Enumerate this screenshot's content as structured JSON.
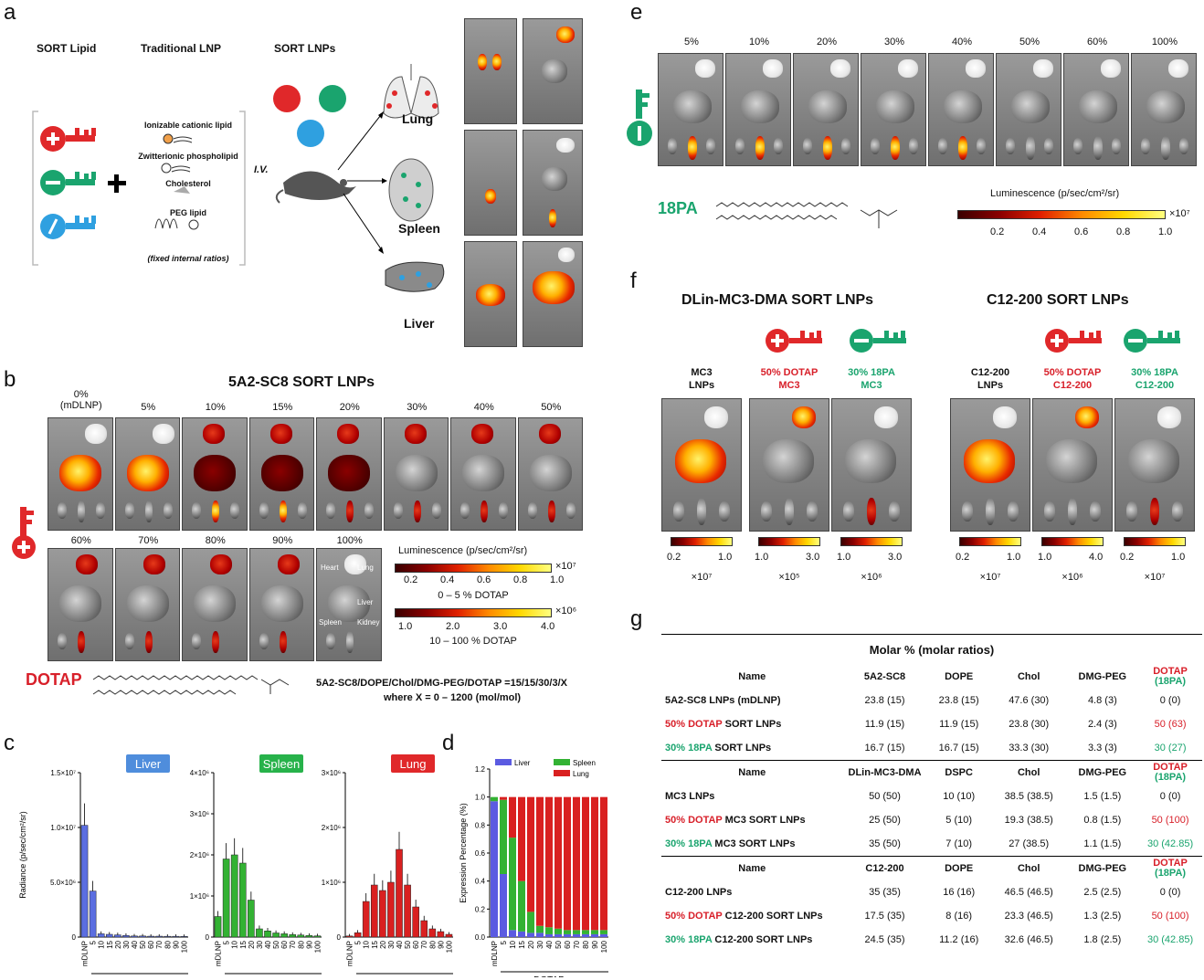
{
  "panels": {
    "a": "a",
    "b": "b",
    "c": "c",
    "d": "d",
    "e": "e",
    "f": "f",
    "g": "g"
  },
  "a": {
    "col_sort_lipid": "SORT Lipid",
    "col_traditional": "Traditional LNP",
    "col_sort_lnps": "SORT LNPs",
    "lnp_components": [
      "Ionizable cationic lipid",
      "Zwitterionic phospholipid",
      "Cholesterol",
      "PEG lipid"
    ],
    "fixed_ratios": "(fixed internal ratios)",
    "iv": "I.V.",
    "organs": [
      "Lung",
      "Spleen",
      "Liver"
    ],
    "plus": "+"
  },
  "b": {
    "title": "5A2-SC8 SORT LNPs",
    "row1": [
      "0%\n(mDLNP)",
      "5%",
      "10%",
      "15%",
      "20%",
      "30%",
      "40%",
      "50%"
    ],
    "row2": [
      "60%",
      "70%",
      "80%",
      "90%",
      "100%"
    ],
    "tile_labels": [
      "Heart",
      "Lung",
      "Liver",
      "Spleen",
      "Kidney"
    ],
    "lum_title": "Luminescence (p/sec/cm²/sr)",
    "scale1_ticks": [
      "0.2",
      "0.4",
      "0.6",
      "0.8",
      "1.0"
    ],
    "scale1_mult": "×10⁷",
    "scale1_caption": "0 – 5 % DOTAP",
    "scale2_ticks": [
      "1.0",
      "2.0",
      "3.0",
      "4.0"
    ],
    "scale2_mult": "×10⁶",
    "scale2_caption": "10 – 100 % DOTAP",
    "lipid_name": "DOTAP",
    "formula_line1": "5A2-SC8/DOPE/Chol/DMG-PEG/DOTAP =15/15/30/3/X",
    "formula_line2": "where X = 0 – 1200 (mol/mol)"
  },
  "c": {
    "ylabel": "Radiance (p/sec/cm²/sr)",
    "xlabel": "DOTAP",
    "charts": [
      {
        "name": "Liver",
        "color": "#5b6ee1",
        "badge": "#4f8ddc",
        "yticks": [
          "0",
          "5.0×10⁶",
          "1.0×10⁷",
          "1.5×10⁷"
        ],
        "ymax": 15000000
      },
      {
        "name": "Spleen",
        "color": "#33b233",
        "badge": "#27b24a",
        "yticks": [
          "0",
          "1×10⁶",
          "2×10⁶",
          "3×10⁶",
          "4×10⁶"
        ],
        "ymax": 4000000
      },
      {
        "name": "Lung",
        "color": "#d92020",
        "badge": "#e0282a",
        "yticks": [
          "0",
          "1×10⁶",
          "2×10⁶",
          "3×10⁶"
        ],
        "ymax": 3000000
      }
    ],
    "xticks": [
      "mDLNP",
      "5",
      "10",
      "15",
      "20",
      "30",
      "40",
      "50",
      "60",
      "70",
      "80",
      "90",
      "100"
    ]
  },
  "chart_data": [
    {
      "type": "bar",
      "title": "Liver",
      "xlabel": "DOTAP",
      "ylabel": "Radiance (p/sec/cm²/sr)",
      "categories": [
        "mDLNP",
        "5",
        "10",
        "15",
        "20",
        "30",
        "40",
        "50",
        "60",
        "70",
        "80",
        "90",
        "100"
      ],
      "values": [
        10200000,
        4200000,
        300000,
        250000,
        200000,
        150000,
        100000,
        100000,
        80000,
        80000,
        70000,
        70000,
        60000
      ],
      "ylim": [
        0,
        15000000
      ]
    },
    {
      "type": "bar",
      "title": "Spleen",
      "xlabel": "DOTAP",
      "ylabel": "",
      "categories": [
        "mDLNP",
        "5",
        "10",
        "15",
        "20",
        "30",
        "40",
        "50",
        "60",
        "70",
        "80",
        "90",
        "100"
      ],
      "values": [
        500000,
        1900000,
        2000000,
        1800000,
        900000,
        200000,
        150000,
        100000,
        80000,
        60000,
        50000,
        40000,
        30000
      ],
      "ylim": [
        0,
        4000000
      ]
    },
    {
      "type": "bar",
      "title": "Lung",
      "xlabel": "DOTAP",
      "ylabel": "",
      "categories": [
        "mDLNP",
        "5",
        "10",
        "15",
        "20",
        "30",
        "40",
        "50",
        "60",
        "70",
        "80",
        "90",
        "100"
      ],
      "values": [
        20000,
        80000,
        650000,
        950000,
        850000,
        1000000,
        1600000,
        950000,
        550000,
        300000,
        150000,
        100000,
        50000
      ],
      "ylim": [
        0,
        3000000
      ]
    },
    {
      "type": "bar",
      "title": "",
      "xlabel": "DOTAP",
      "ylabel": "Expression Percentage (%)",
      "categories": [
        "mDLNP",
        "5",
        "10",
        "15",
        "20",
        "30",
        "40",
        "50",
        "60",
        "70",
        "80",
        "90",
        "100"
      ],
      "series": [
        {
          "name": "Liver",
          "values": [
            0.97,
            0.45,
            0.05,
            0.04,
            0.03,
            0.03,
            0.02,
            0.02,
            0.02,
            0.02,
            0.02,
            0.02,
            0.02
          ]
        },
        {
          "name": "Spleen",
          "values": [
            0.03,
            0.53,
            0.66,
            0.36,
            0.15,
            0.05,
            0.05,
            0.04,
            0.03,
            0.03,
            0.03,
            0.03,
            0.03
          ]
        },
        {
          "name": "Lung",
          "values": [
            0.0,
            0.02,
            0.29,
            0.6,
            0.82,
            0.92,
            0.93,
            0.94,
            0.95,
            0.95,
            0.95,
            0.95,
            0.95
          ]
        }
      ],
      "ylim": [
        0,
        1.2
      ]
    }
  ],
  "d": {
    "yticks": [
      "0.0",
      "0.2",
      "0.4",
      "0.6",
      "0.8",
      "1.0",
      "1.2"
    ],
    "legend": [
      "Liver",
      "Spleen",
      "Lung"
    ],
    "xlabel": "DOTAP",
    "ylabel": "Expression Percentage (%)"
  },
  "e": {
    "pcts": [
      "5%",
      "10%",
      "20%",
      "30%",
      "40%",
      "50%",
      "60%",
      "100%"
    ],
    "lipid_name": "18PA",
    "lum_title": "Luminescence  (p/sec/cm²/sr)",
    "ticks": [
      "0.2",
      "0.4",
      "0.6",
      "0.8",
      "1.0"
    ],
    "mult": "×10⁷"
  },
  "f": {
    "title_left": "DLin-MC3-DMA SORT LNPs",
    "title_right": "C12-200 SORT LNPs",
    "cols": [
      {
        "l1": "MC3",
        "l2": "LNPs",
        "cls": "",
        "ticks": [
          "0.2",
          "1.0"
        ],
        "mult": "×10⁷"
      },
      {
        "l1": "50% DOTAP",
        "l2": "MC3",
        "cls": "red",
        "ticks": [
          "1.0",
          "3.0"
        ],
        "mult": "×10⁵"
      },
      {
        "l1": "30% 18PA",
        "l2": "MC3",
        "cls": "green",
        "ticks": [
          "1.0",
          "3.0"
        ],
        "mult": "×10⁶"
      },
      {
        "l1": "C12-200",
        "l2": "LNPs",
        "cls": "",
        "ticks": [
          "0.2",
          "1.0"
        ],
        "mult": "×10⁷"
      },
      {
        "l1": "50% DOTAP",
        "l2": "C12-200",
        "cls": "red",
        "ticks": [
          "1.0",
          "4.0"
        ],
        "mult": "×10⁶"
      },
      {
        "l1": "30% 18PA",
        "l2": "C12-200",
        "cls": "green",
        "ticks": [
          "0.2",
          "1.0"
        ],
        "mult": "×10⁷"
      }
    ]
  },
  "g": {
    "title": "Molar % (molar ratios)",
    "blocks": [
      {
        "header": [
          "Name",
          "5A2-SC8",
          "DOPE",
          "Chol",
          "DMG-PEG",
          "DOTAP",
          "(18PA)"
        ],
        "rows": [
          {
            "name_colored": "",
            "name_rest": "5A2-SC8 LNPs (mDLNP)",
            "cls": "",
            "cells": [
              "23.8 (15)",
              "23.8 (15)",
              "47.6 (30)",
              "4.8 (3)",
              "0 (0)"
            ]
          },
          {
            "name_colored": "50% DOTAP",
            "name_rest": " SORT LNPs",
            "cls": "red",
            "cells": [
              "11.9 (15)",
              "11.9 (15)",
              "23.8 (30)",
              "2.4 (3)",
              "50 (63)"
            ]
          },
          {
            "name_colored": "30% 18PA",
            "name_rest": " SORT LNPs",
            "cls": "green",
            "cells": [
              "16.7 (15)",
              "16.7 (15)",
              "33.3 (30)",
              "3.3 (3)",
              "30 (27)"
            ]
          }
        ]
      },
      {
        "header": [
          "Name",
          "DLin-MC3-DMA",
          "DSPC",
          "Chol",
          "DMG-PEG",
          "DOTAP",
          "(18PA)"
        ],
        "rows": [
          {
            "name_colored": "",
            "name_rest": "MC3 LNPs",
            "cls": "",
            "cells": [
              "50 (50)",
              "10 (10)",
              "38.5 (38.5)",
              "1.5 (1.5)",
              "0 (0)"
            ]
          },
          {
            "name_colored": "50% DOTAP",
            "name_rest": "  MC3 SORT LNPs",
            "cls": "red",
            "cells": [
              "25 (50)",
              "5 (10)",
              "19.3 (38.5)",
              "0.8 (1.5)",
              "50 (100)"
            ]
          },
          {
            "name_colored": "30% 18PA",
            "name_rest": " MC3 SORT LNPs",
            "cls": "green",
            "cells": [
              "35 (50)",
              "7 (10)",
              "27 (38.5)",
              "1.1 (1.5)",
              "30 (42.85)"
            ]
          }
        ]
      },
      {
        "header": [
          "Name",
          "C12-200",
          "DOPE",
          "Chol",
          "DMG-PEG",
          "DOTAP",
          "(18PA)"
        ],
        "rows": [
          {
            "name_colored": "",
            "name_rest": "C12-200 LNPs",
            "cls": "",
            "cells": [
              "35 (35)",
              "16 (16)",
              "46.5 (46.5)",
              "2.5 (2.5)",
              "0 (0)"
            ]
          },
          {
            "name_colored": "50% DOTAP",
            "name_rest": " C12-200 SORT LNPs",
            "cls": "red",
            "cells": [
              "17.5 (35)",
              "8 (16)",
              "23.3 (46.5)",
              "1.3 (2.5)",
              "50 (100)"
            ]
          },
          {
            "name_colored": "30% 18PA",
            "name_rest": " C12-200 SORT LNPs",
            "cls": "green",
            "cells": [
              "24.5 (35)",
              "11.2 (16)",
              "32.6 (46.5)",
              "1.8 (2.5)",
              "30 (42.85)"
            ]
          }
        ]
      }
    ]
  }
}
